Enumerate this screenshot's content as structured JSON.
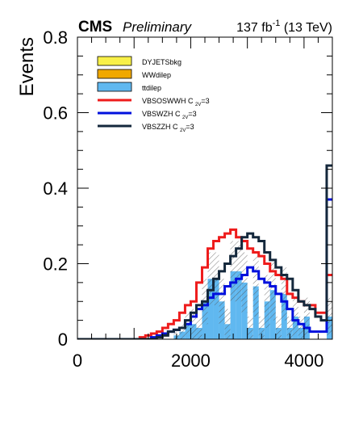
{
  "header": {
    "experiment": "CMS",
    "status": "Preliminary",
    "lumi_value": "137 fb",
    "lumi_exp": "-1",
    "lumi_energy": " (13 TeV)"
  },
  "chart_data": {
    "type": "histogram",
    "ylabel": "Events",
    "xlabel": "",
    "xlim": [
      0,
      4500
    ],
    "ylim": [
      0,
      0.8
    ],
    "xticks": [
      0,
      2000,
      4000
    ],
    "yticks": [
      0,
      0.2,
      0.4,
      0.6,
      0.8
    ],
    "bin_edges": [
      0,
      100,
      200,
      300,
      400,
      500,
      600,
      700,
      800,
      900,
      1000,
      1100,
      1200,
      1300,
      1400,
      1500,
      1600,
      1700,
      1800,
      1900,
      2000,
      2100,
      2200,
      2300,
      2400,
      2500,
      2600,
      2700,
      2800,
      2900,
      3000,
      3100,
      3200,
      3300,
      3400,
      3500,
      3600,
      3700,
      3800,
      3900,
      4000,
      4100,
      4200,
      4300,
      4400,
      4500
    ],
    "legend_position": "top-left",
    "series": [
      {
        "name": "DYJETSbkg",
        "style": "fill",
        "color": "#f8f048",
        "values": []
      },
      {
        "name": "WWdilep",
        "style": "fill",
        "color": "#f0a800",
        "values": []
      },
      {
        "name": "ttdilep",
        "style": "fill",
        "color": "#60b8f0",
        "values": [
          0,
          0,
          0,
          0,
          0,
          0,
          0,
          0,
          0,
          0,
          0,
          0,
          0,
          0,
          0,
          0,
          0,
          0.01,
          0.02,
          0.04,
          0.04,
          0.03,
          0.1,
          0.16,
          0.16,
          0.1,
          0.04,
          0.18,
          0.18,
          0.15,
          0.03,
          0.14,
          0.03,
          0.1,
          0.13,
          0.03,
          0.12,
          0.03,
          0.06,
          0.03,
          0.06,
          0.0,
          0.0,
          0.0,
          0.06
        ]
      },
      {
        "name": "VBSOSWWH C_{2V}=3",
        "label_main": "VBSOSWWH C",
        "label_sub": "2V",
        "label_tail": "=3",
        "style": "line",
        "color": "#ee1c1c",
        "values": [
          0,
          0,
          0,
          0,
          0,
          0,
          0,
          0,
          0,
          0,
          0,
          0.005,
          0.01,
          0.015,
          0.02,
          0.03,
          0.04,
          0.05,
          0.07,
          0.09,
          0.1,
          0.15,
          0.19,
          0.24,
          0.26,
          0.27,
          0.28,
          0.29,
          0.27,
          0.26,
          0.24,
          0.23,
          0.22,
          0.2,
          0.18,
          0.17,
          0.16,
          0.12,
          0.11,
          0.1,
          0.09,
          0.09,
          0.07,
          0.07,
          0.17
        ]
      },
      {
        "name": "VBSWZH C_{2V}=3",
        "label_main": "VBSWZH C",
        "label_sub": "2V",
        "label_tail": "=3",
        "style": "line",
        "color": "#0010dd",
        "values": [
          0,
          0,
          0,
          0,
          0,
          0,
          0,
          0,
          0,
          0,
          0,
          0,
          0,
          0.005,
          0.01,
          0.015,
          0.02,
          0.025,
          0.03,
          0.04,
          0.06,
          0.08,
          0.09,
          0.11,
          0.12,
          0.12,
          0.14,
          0.15,
          0.16,
          0.17,
          0.19,
          0.18,
          0.16,
          0.15,
          0.14,
          0.12,
          0.1,
          0.08,
          0.05,
          0.04,
          0.03,
          0.02,
          0.02,
          0.02,
          0.37
        ]
      },
      {
        "name": "VBSZZH C_{2V}=3",
        "label_main": "VBSZZH C",
        "label_sub": "2V",
        "label_tail": "=3",
        "style": "line",
        "color": "#14283c",
        "values": [
          0,
          0,
          0,
          0,
          0,
          0,
          0,
          0,
          0,
          0,
          0,
          0,
          0,
          0,
          0.005,
          0.01,
          0.02,
          0.025,
          0.03,
          0.05,
          0.07,
          0.09,
          0.1,
          0.13,
          0.16,
          0.18,
          0.2,
          0.22,
          0.24,
          0.27,
          0.28,
          0.27,
          0.26,
          0.23,
          0.21,
          0.19,
          0.17,
          0.16,
          0.13,
          0.1,
          0.09,
          0.08,
          0.06,
          0.05,
          0.46
        ]
      }
    ],
    "uncertainty_band": {
      "label": "",
      "center": [
        0,
        0,
        0,
        0,
        0,
        0,
        0,
        0,
        0,
        0,
        0,
        0,
        0,
        0,
        0,
        0,
        0,
        0.01,
        0.02,
        0.04,
        0.04,
        0.03,
        0.1,
        0.16,
        0.16,
        0.1,
        0.04,
        0.18,
        0.18,
        0.15,
        0.03,
        0.14,
        0.03,
        0.1,
        0.13,
        0.03,
        0.12,
        0.03,
        0.06,
        0.03,
        0.06,
        0.0,
        0.0,
        0.0,
        0.06
      ],
      "half_width": [
        0,
        0,
        0,
        0,
        0,
        0,
        0,
        0,
        0,
        0,
        0,
        0,
        0,
        0,
        0,
        0,
        0,
        0.01,
        0.02,
        0.03,
        0.04,
        0.03,
        0.06,
        0.07,
        0.07,
        0.06,
        0.04,
        0.08,
        0.08,
        0.08,
        0.03,
        0.08,
        0.03,
        0.07,
        0.08,
        0.03,
        0.07,
        0.03,
        0.05,
        0.03,
        0.05,
        0.0,
        0.0,
        0.0,
        0.05
      ]
    }
  }
}
